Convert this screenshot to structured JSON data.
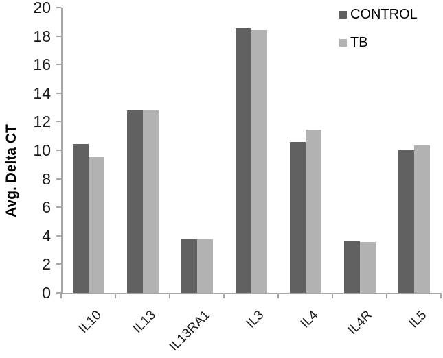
{
  "chart_data": {
    "type": "bar",
    "title": "",
    "xlabel": "",
    "ylabel": "Avg. Delta CT",
    "categories": [
      "IL10",
      "IL13",
      "IL13RA1",
      "IL3",
      "IL4",
      "IL4R",
      "IL5"
    ],
    "series": [
      {
        "name": "CONTROL",
        "color": "#616161",
        "values": [
          10.45,
          12.8,
          3.75,
          18.55,
          10.6,
          3.6,
          10.0
        ]
      },
      {
        "name": "TB",
        "color": "#b2b2b2",
        "values": [
          9.5,
          12.8,
          3.75,
          18.4,
          11.45,
          3.55,
          10.35
        ]
      }
    ],
    "ylim": [
      0,
      20
    ],
    "ytick_step": 2,
    "ytick_labels": [
      "0",
      "2",
      "4",
      "6",
      "8",
      "10",
      "12",
      "14",
      "16",
      "18",
      "20"
    ],
    "grid": false,
    "legend_position": "top-right",
    "axis_color": "#a6a6a6",
    "text_color": "#1a1a1a",
    "background": "#ffffff"
  }
}
